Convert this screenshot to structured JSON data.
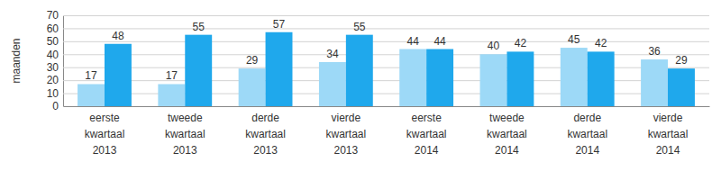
{
  "chart_data": {
    "type": "bar",
    "y_label": "maanden",
    "categories": [
      "eerste kwartaal 2013",
      "tweede kwartaal 2013",
      "derde kwartaal 2013",
      "vierde kwartaal 2013",
      "eerste kwartaal 2014",
      "tweede kwartaal 2014",
      "derde kwartaal 2014",
      "vierde kwartaal 2014"
    ],
    "series": [
      {
        "color": "#9dd9f7",
        "values": [
          17,
          17,
          29,
          34,
          44,
          40,
          45,
          36
        ]
      },
      {
        "color": "#1fa8ec",
        "values": [
          48,
          55,
          57,
          55,
          44,
          42,
          42,
          29
        ]
      }
    ],
    "ylim": [
      0,
      70
    ],
    "yticks": [
      0,
      10,
      20,
      30,
      40,
      50,
      60,
      70
    ],
    "grid": true,
    "data_labels": true
  }
}
